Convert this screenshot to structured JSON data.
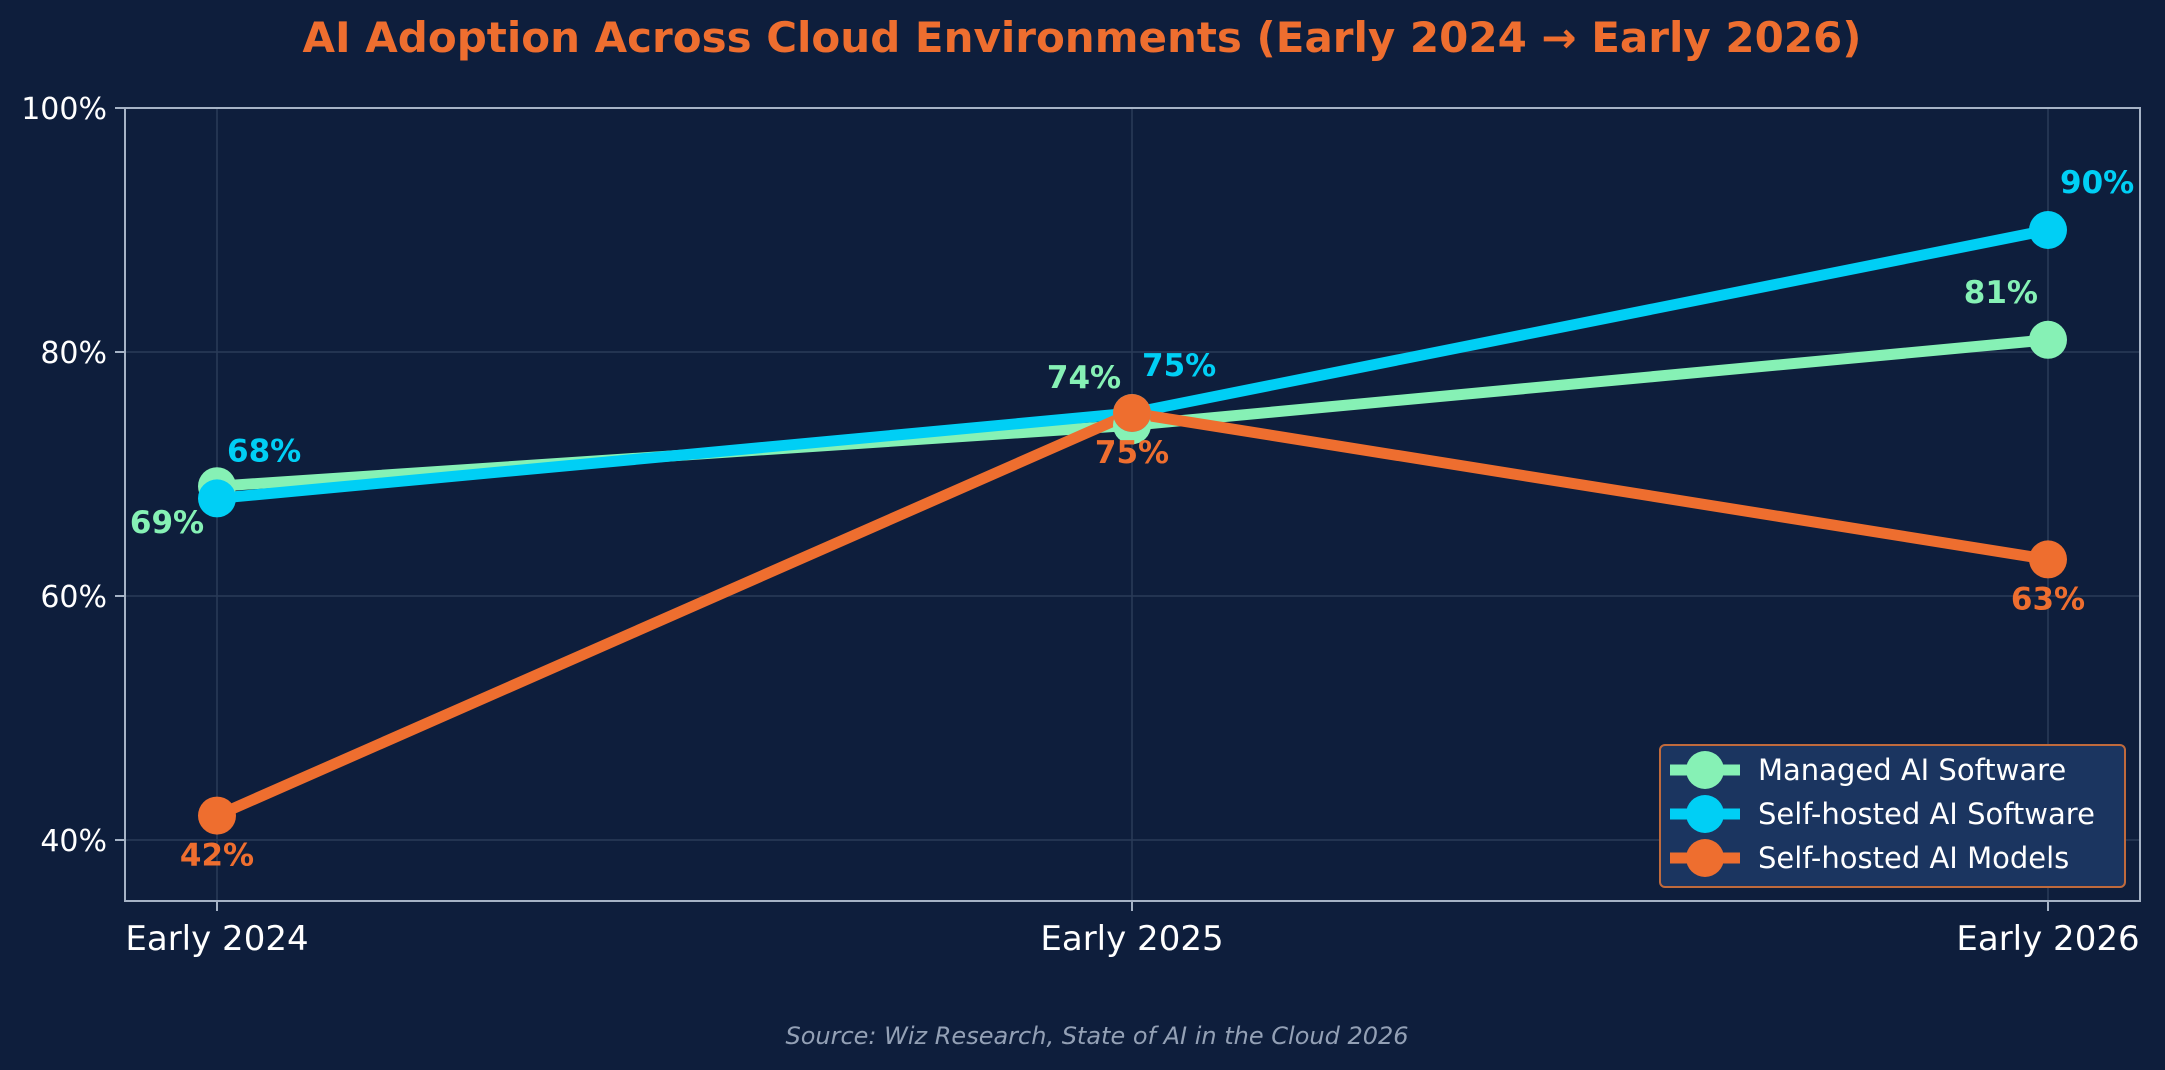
{
  "chart_data": {
    "type": "line",
    "title": "AI Adoption Across Cloud Environments (Early 2024 → Early 2026)",
    "categories": [
      "Early 2024",
      "Early 2025",
      "Early 2026"
    ],
    "ylim": [
      35,
      100
    ],
    "yticks": [
      40,
      60,
      80,
      100
    ],
    "ytick_labels": [
      "40%",
      "60%",
      "80%",
      "100%"
    ],
    "grid": true,
    "legend_position": "bottom-right",
    "series": [
      {
        "name": "Managed AI Software",
        "color": "#86f1b5",
        "values": [
          69,
          74,
          81
        ],
        "labels": [
          "69%",
          "74%",
          "81%"
        ]
      },
      {
        "name": "Self-hosted AI Software",
        "color": "#00cff5",
        "values": [
          68,
          75,
          90
        ],
        "labels": [
          "68%",
          "75%",
          "90%"
        ]
      },
      {
        "name": "Self-hosted AI Models",
        "color": "#ee6e2f",
        "values": [
          42,
          75,
          63
        ],
        "labels": [
          "42%",
          "75%",
          "63%"
        ]
      }
    ],
    "source": "Source: Wiz Research, State of AI in the Cloud 2026"
  },
  "colors": {
    "background": "#0e1e3c",
    "title": "#ee6e2f",
    "axis": "#a6b3c6",
    "grid": "#2a3b58",
    "legend_background": "#1b3560",
    "legend_border": "#c06a3c"
  }
}
